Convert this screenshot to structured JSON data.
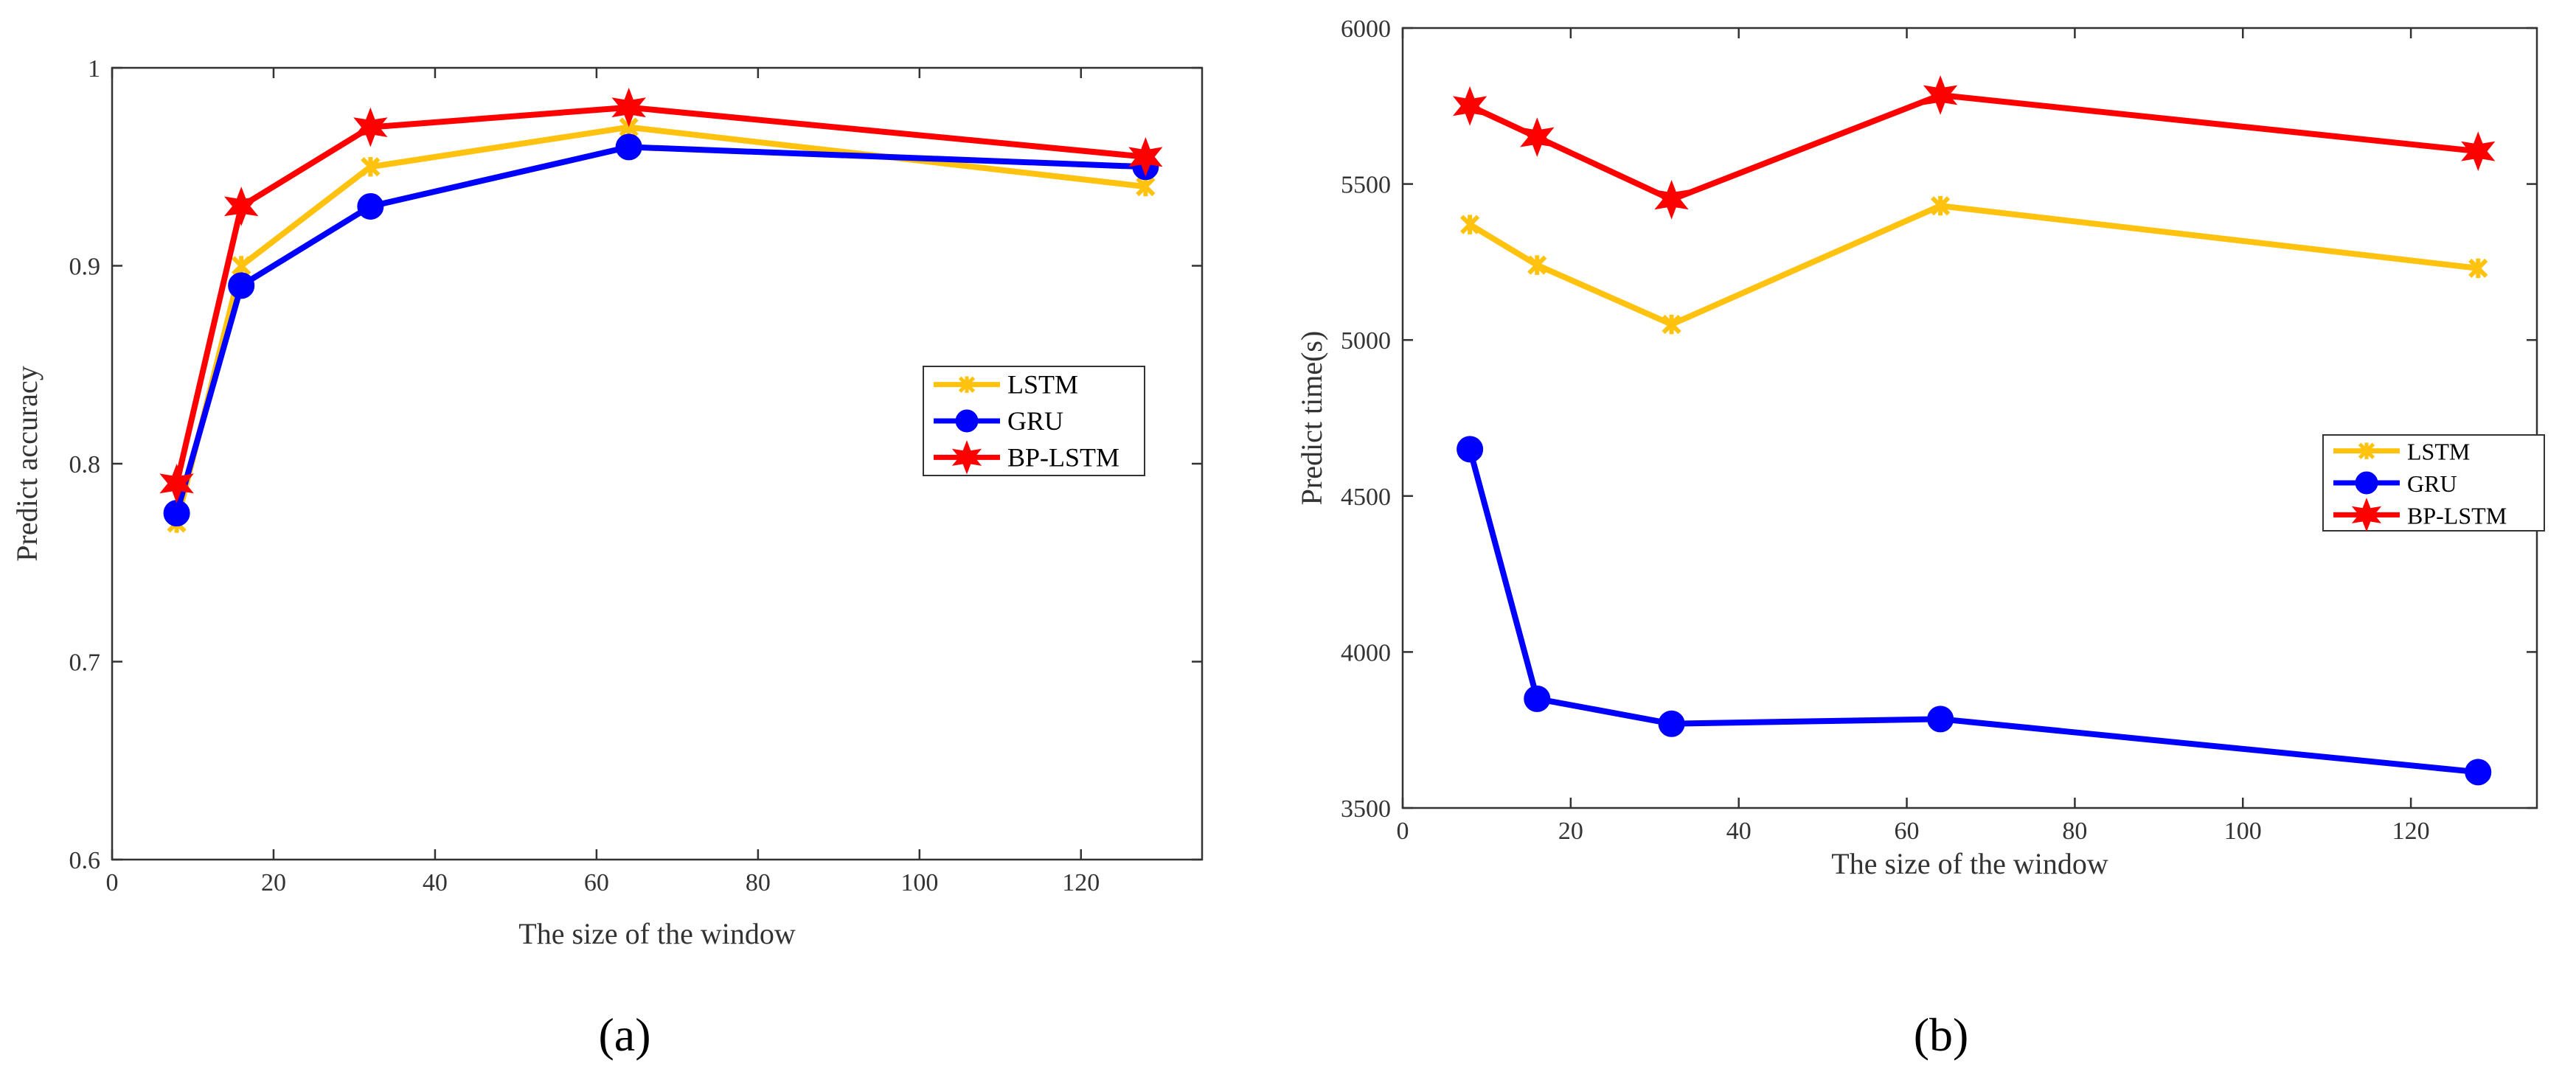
{
  "colors": {
    "lstm": "#FFC20E",
    "gru": "#0000FF",
    "bplstm": "#FF0000",
    "axis": "#333333"
  },
  "chart_data": [
    {
      "panel": "(a)",
      "type": "line",
      "title": "",
      "xlabel": "The size of the window",
      "ylabel": "Predict accuracy",
      "xlim": [
        0,
        135
      ],
      "ylim": [
        0.6,
        1.0
      ],
      "xticks": [
        0,
        20,
        40,
        60,
        80,
        100,
        120
      ],
      "xtick_labels": [
        "0",
        "20",
        "40",
        "60",
        "80",
        "100",
        "120"
      ],
      "yticks": [
        0.6,
        0.7,
        0.8,
        0.9,
        1.0
      ],
      "ytick_labels": [
        "0.6",
        "0.7",
        "0.8",
        "0.9",
        "1"
      ],
      "grid": false,
      "legend_position": "right-middle",
      "x": [
        8,
        16,
        32,
        64,
        128
      ],
      "series": [
        {
          "name": "LSTM",
          "color_key": "lstm",
          "marker": "x",
          "values": [
            0.77,
            0.9,
            0.95,
            0.97,
            0.94
          ]
        },
        {
          "name": "GRU",
          "color_key": "gru",
          "marker": "circle",
          "values": [
            0.775,
            0.89,
            0.93,
            0.96,
            0.95
          ]
        },
        {
          "name": "BP-LSTM",
          "color_key": "bplstm",
          "marker": "star",
          "values": [
            0.79,
            0.93,
            0.97,
            0.98,
            0.955
          ]
        }
      ]
    },
    {
      "panel": "(b)",
      "type": "line",
      "title": "",
      "xlabel": "The size of the window",
      "ylabel": "Predict time(s)",
      "xlim": [
        0,
        135
      ],
      "ylim": [
        3500,
        6000
      ],
      "xticks": [
        0,
        20,
        40,
        60,
        80,
        100,
        120
      ],
      "xtick_labels": [
        "0",
        "20",
        "40",
        "60",
        "80",
        "100",
        "120"
      ],
      "yticks": [
        3500,
        4000,
        4500,
        5000,
        5500,
        6000
      ],
      "ytick_labels": [
        "3500",
        "4000",
        "4500",
        "5000",
        "5500",
        "6000"
      ],
      "grid": false,
      "legend_position": "right-middle",
      "x": [
        8,
        16,
        32,
        64,
        128
      ],
      "series": [
        {
          "name": "LSTM",
          "color_key": "lstm",
          "marker": "x",
          "values": [
            5370,
            5240,
            5050,
            5430,
            5230
          ]
        },
        {
          "name": "GRU",
          "color_key": "gru",
          "marker": "circle",
          "values": [
            4650,
            3850,
            3770,
            3785,
            3615
          ]
        },
        {
          "name": "BP-LSTM",
          "color_key": "bplstm",
          "marker": "star",
          "values": [
            5750,
            5650,
            5450,
            5785,
            5605
          ]
        }
      ]
    }
  ]
}
